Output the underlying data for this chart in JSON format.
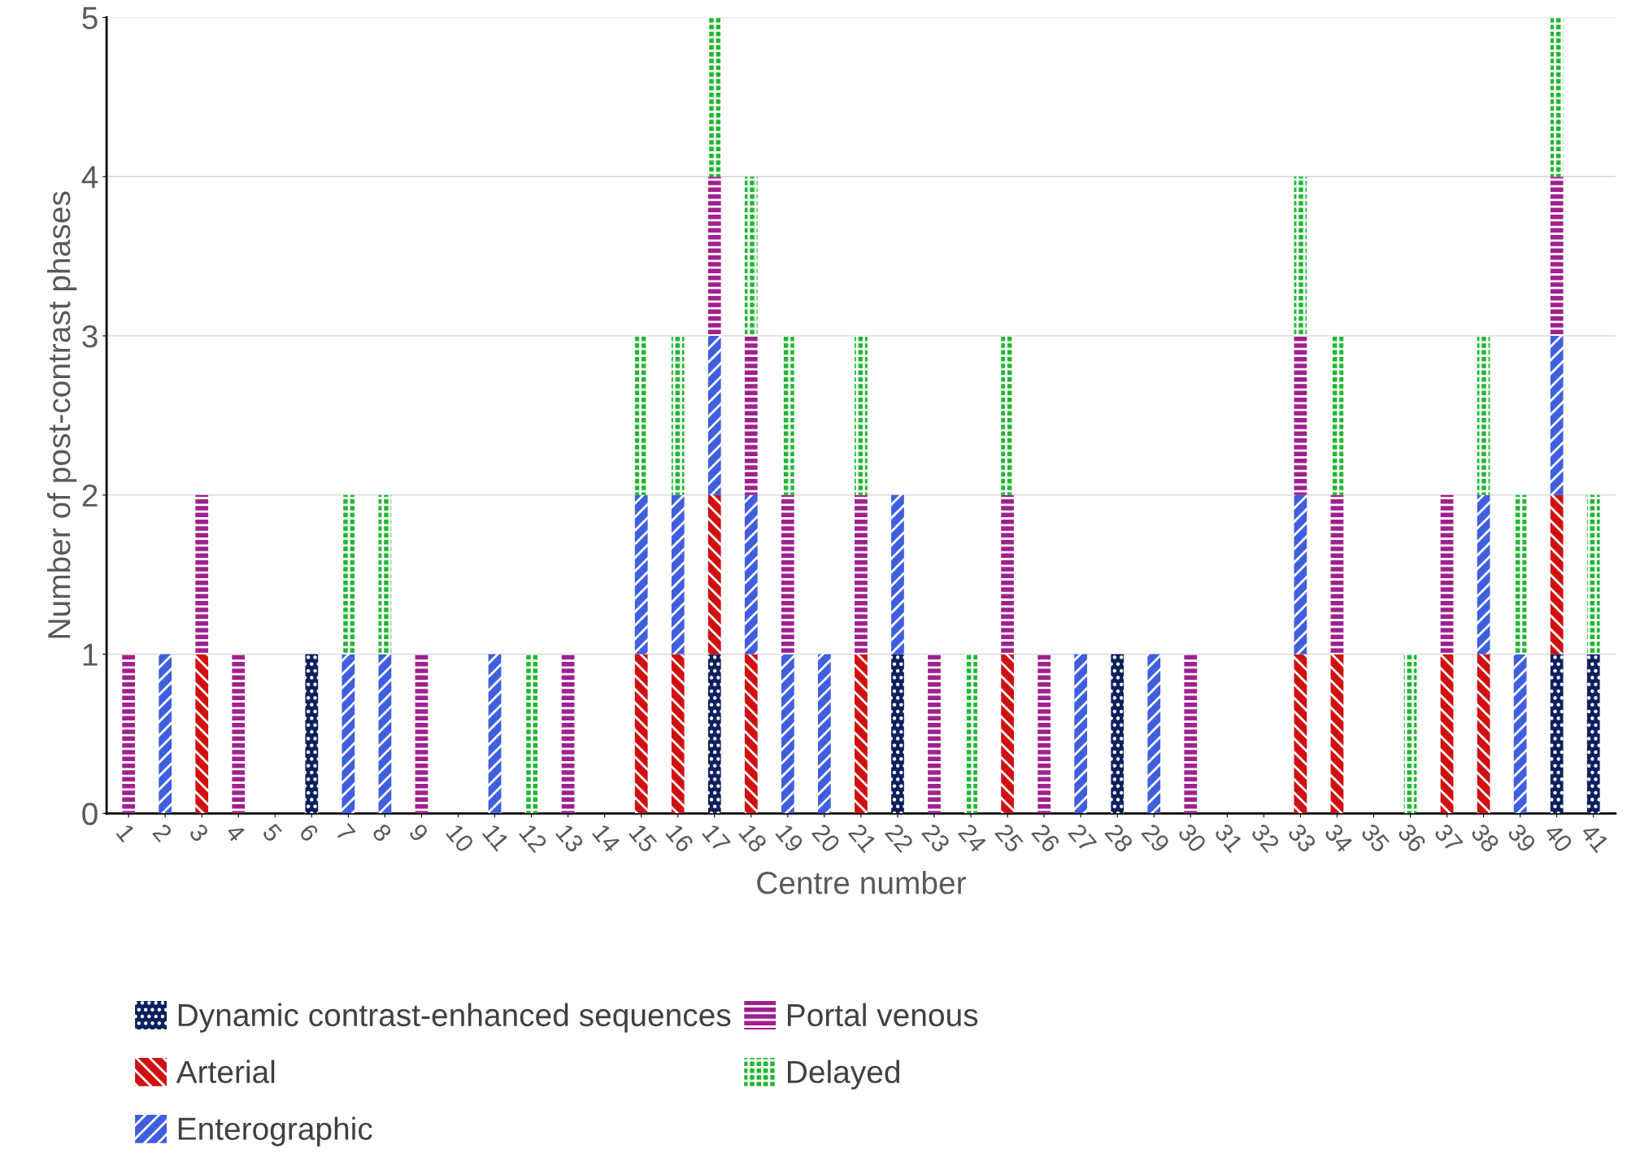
{
  "chart_data": {
    "type": "bar",
    "stacked": true,
    "xlabel": "Centre number",
    "ylabel": "Number of post-contrast phases",
    "categories": [
      "1",
      "2",
      "3",
      "4",
      "5",
      "6",
      "7",
      "8",
      "9",
      "10",
      "11",
      "12",
      "13",
      "14",
      "15",
      "16",
      "17",
      "18",
      "19",
      "20",
      "21",
      "22",
      "23",
      "24",
      "25",
      "26",
      "27",
      "28",
      "29",
      "30",
      "31",
      "32",
      "33",
      "34",
      "35",
      "36",
      "37",
      "38",
      "39",
      "40",
      "41"
    ],
    "series": [
      {
        "name": "Dynamic contrast-enhanced sequences",
        "color": "#0d1f5c",
        "values": [
          0,
          0,
          0,
          0,
          0,
          1,
          0,
          0,
          0,
          0,
          0,
          0,
          0,
          0,
          0,
          0,
          1,
          0,
          0,
          0,
          0,
          1,
          0,
          0,
          0,
          0,
          0,
          1,
          0,
          0,
          0,
          0,
          0,
          0,
          0,
          0,
          0,
          0,
          0,
          1,
          1
        ]
      },
      {
        "name": "Arterial",
        "color": "#d01010",
        "values": [
          0,
          0,
          1,
          0,
          0,
          0,
          0,
          0,
          0,
          0,
          0,
          0,
          0,
          0,
          1,
          1,
          1,
          1,
          0,
          0,
          1,
          0,
          0,
          0,
          1,
          0,
          0,
          0,
          0,
          0,
          0,
          0,
          1,
          1,
          0,
          0,
          1,
          1,
          0,
          1,
          0
        ]
      },
      {
        "name": "Enterographic",
        "color": "#3f5fe0",
        "values": [
          0,
          1,
          0,
          0,
          0,
          0,
          1,
          1,
          0,
          0,
          1,
          0,
          0,
          0,
          1,
          1,
          1,
          1,
          1,
          1,
          0,
          1,
          0,
          0,
          0,
          0,
          1,
          0,
          1,
          0,
          0,
          0,
          1,
          0,
          0,
          0,
          0,
          1,
          1,
          1,
          0
        ]
      },
      {
        "name": "Portal venous",
        "color": "#a0208f",
        "values": [
          1,
          0,
          1,
          1,
          0,
          0,
          0,
          0,
          1,
          0,
          0,
          0,
          1,
          0,
          0,
          0,
          1,
          1,
          1,
          0,
          1,
          0,
          1,
          0,
          1,
          1,
          0,
          0,
          0,
          1,
          0,
          0,
          1,
          1,
          0,
          0,
          1,
          0,
          0,
          1,
          0
        ]
      },
      {
        "name": "Delayed",
        "color": "#1fb830",
        "values": [
          0,
          0,
          0,
          0,
          0,
          0,
          1,
          1,
          0,
          0,
          0,
          1,
          0,
          0,
          1,
          1,
          1,
          1,
          1,
          0,
          1,
          0,
          0,
          1,
          1,
          0,
          0,
          0,
          0,
          0,
          0,
          0,
          1,
          1,
          0,
          1,
          0,
          1,
          1,
          1,
          1
        ]
      }
    ],
    "ylim": [
      0,
      5
    ],
    "yticks": [
      0,
      1,
      2,
      3,
      4,
      5
    ],
    "grid": "y",
    "legend": "bottom"
  }
}
